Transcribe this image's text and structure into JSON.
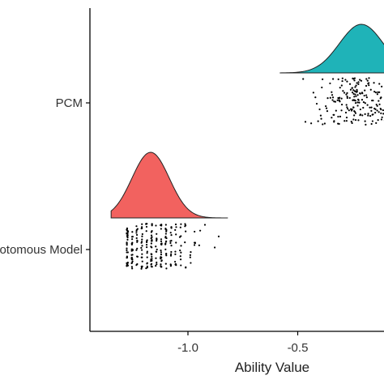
{
  "chart_data": {
    "type": "raincloud",
    "title": "",
    "xlabel": "Ability Value",
    "ylabel": "",
    "x_ticks": [
      -1.0,
      -0.5
    ],
    "x_tick_labels": [
      "-1.0",
      "-0.5"
    ],
    "categories": [
      "PCM",
      "Dichotomous Model"
    ],
    "grid": false,
    "legend": "none",
    "series": [
      {
        "category": "PCM",
        "color": "#1FB3B8",
        "density_mean": -0.21,
        "density_sd": 0.1,
        "density_range": [
          -0.58,
          0.05
        ],
        "points_range": [
          -0.58,
          0.05
        ]
      },
      {
        "category": "Dichotomous Model",
        "color": "#F2625F",
        "density_mean": -1.17,
        "density_sd": 0.085,
        "density_range": [
          -1.35,
          -0.82
        ],
        "points_range": [
          -1.28,
          -0.84
        ]
      }
    ],
    "x_visible_range": [
      -1.42,
      0.15
    ]
  }
}
